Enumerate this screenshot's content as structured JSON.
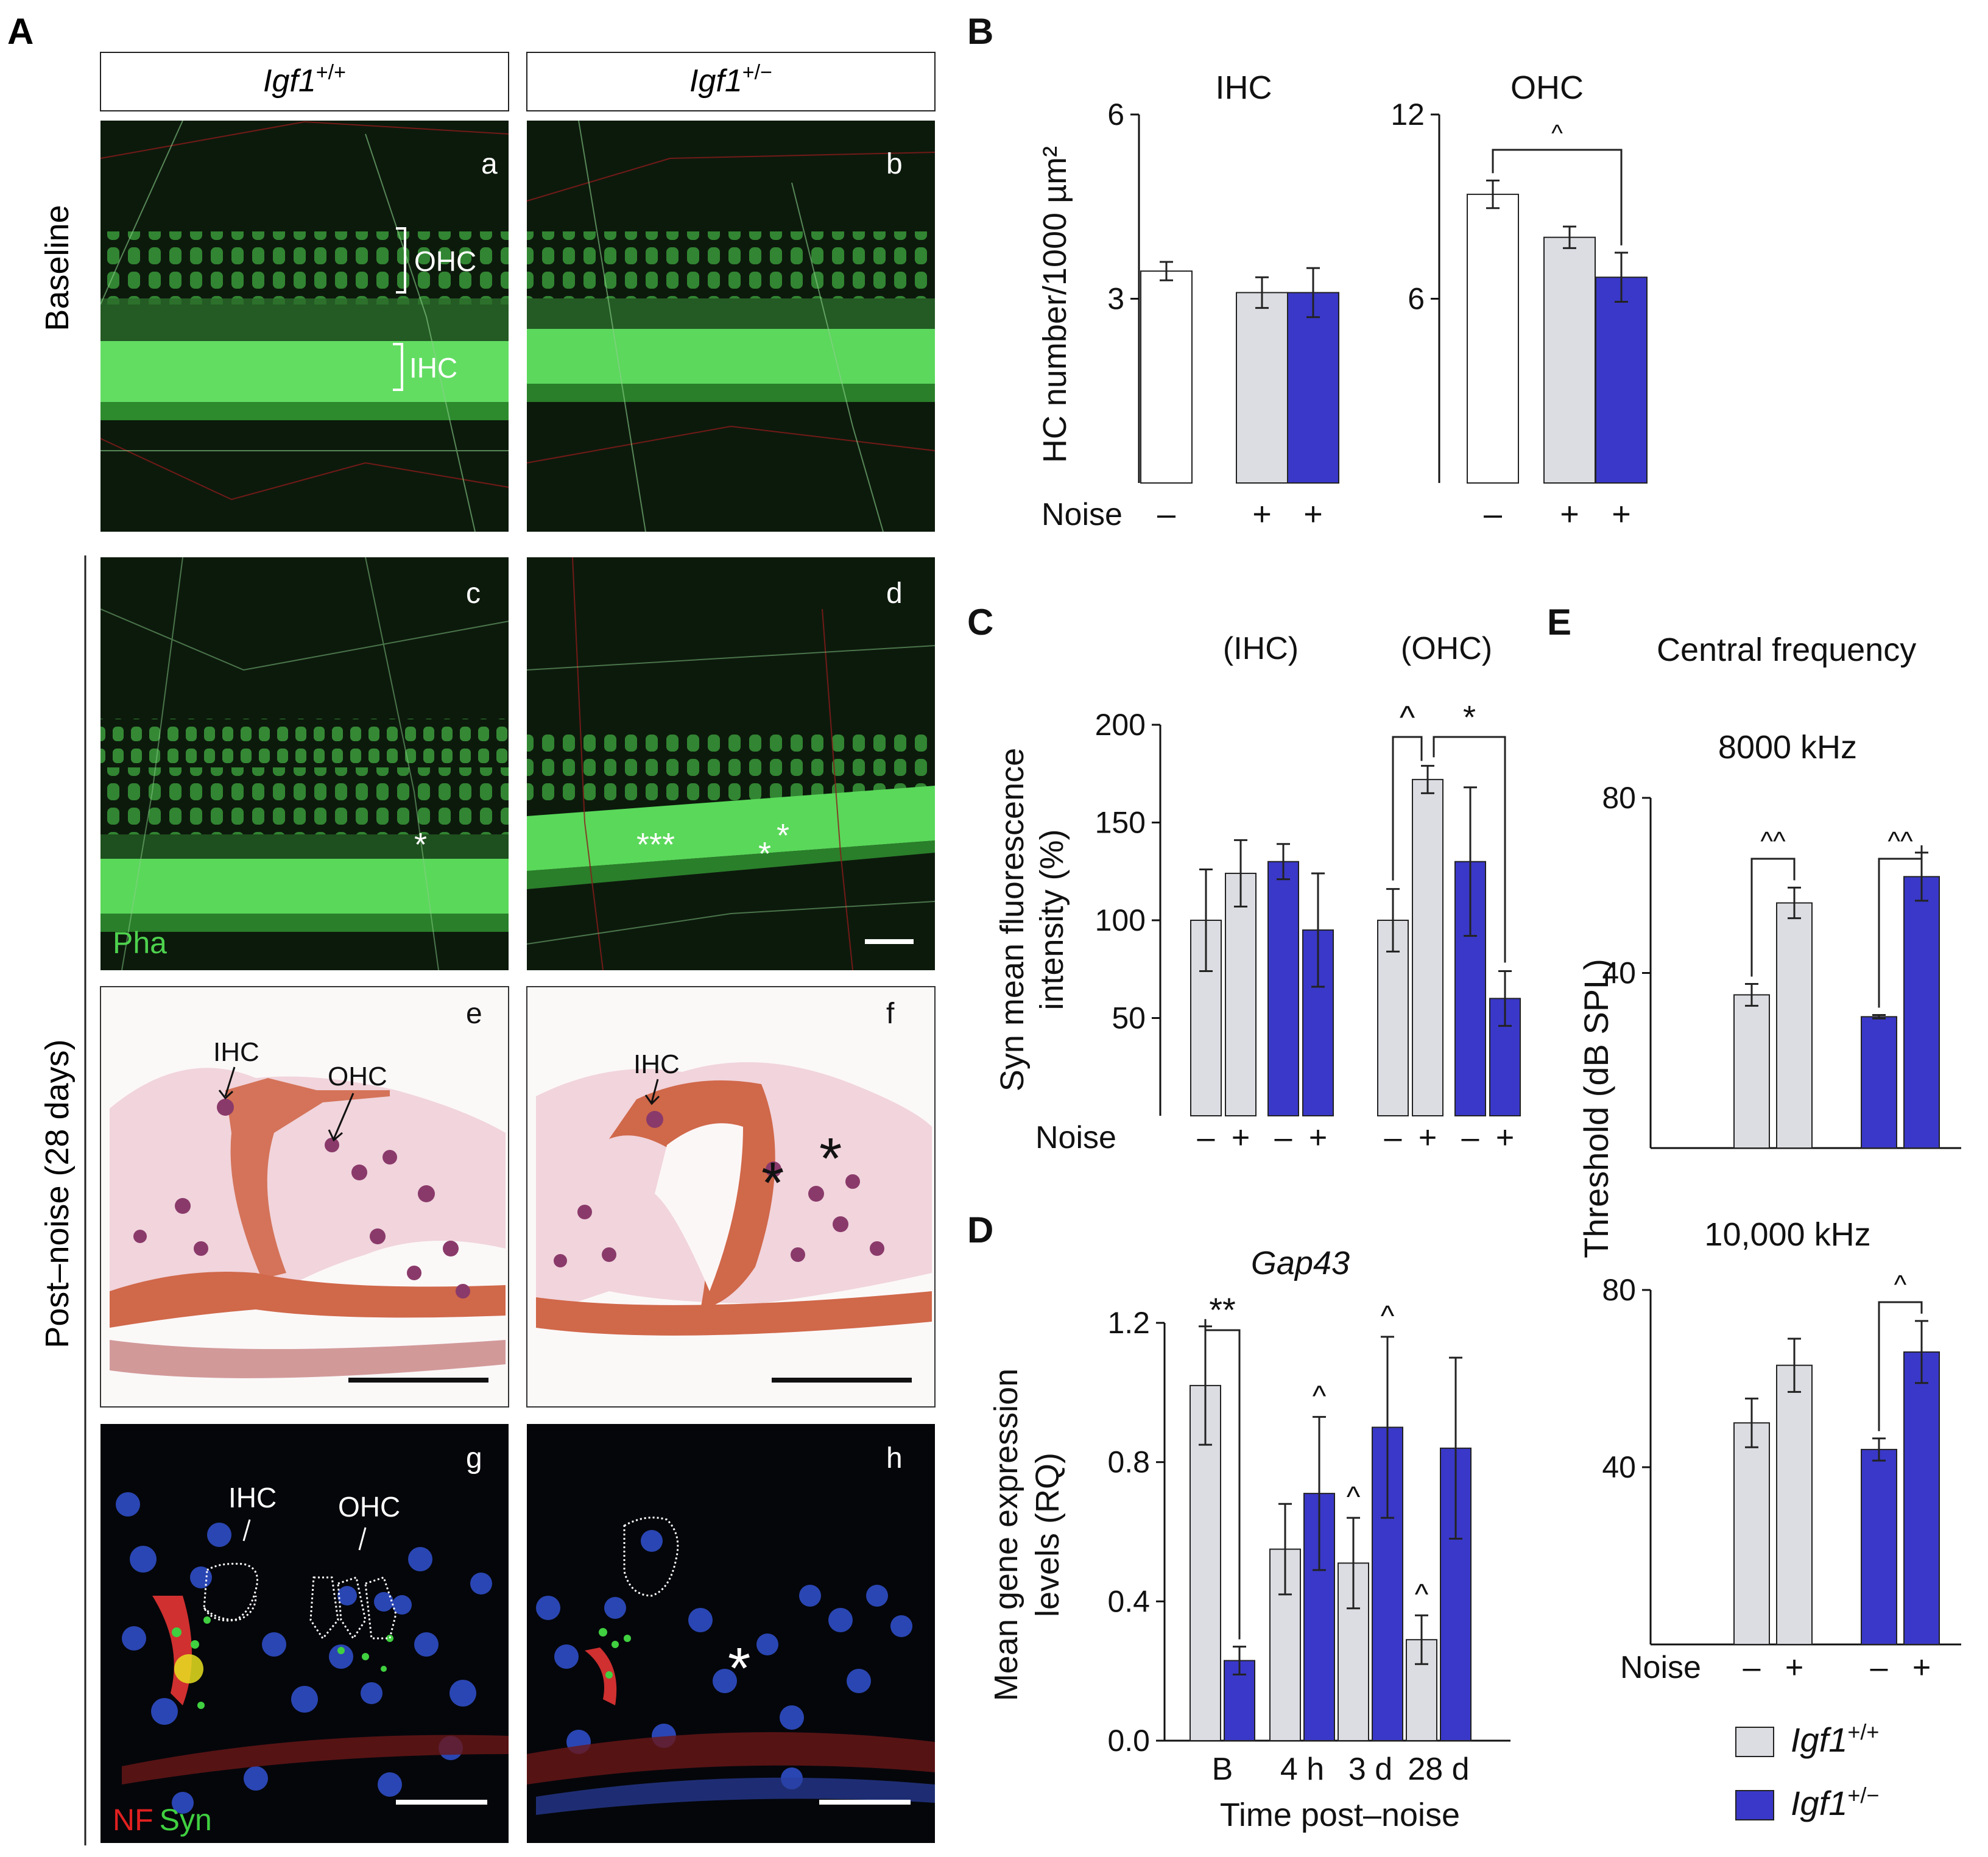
{
  "colors": {
    "wt": "#dcdde2",
    "het": "#3a38c8",
    "white_bar": "#ffffff",
    "pha_green": "#4ed24e",
    "nf_red": "#e02020",
    "syn_green": "#40d040",
    "nuclei_blue": "#3050c8",
    "he_pink": "#e8b0b0",
    "he_orange": "#d0684a",
    "he_purple": "#8a3a6a"
  },
  "panel_A": {
    "letter": "A",
    "col_labels": [
      {
        "gene": "Igf1",
        "sup": "+/+"
      },
      {
        "gene": "Igf1",
        "sup": "+/−"
      }
    ],
    "row_labels": {
      "baseline": "Baseline",
      "postnoise": "Post–noise (28 days)"
    },
    "sublabels": [
      "a",
      "b",
      "c",
      "d",
      "e",
      "f",
      "g",
      "h"
    ],
    "annotations": {
      "ohc": "OHC",
      "ihc": "IHC",
      "pha": "Pha",
      "nf": "NF",
      "syn": "Syn",
      "star": "*",
      "stars_d1": "***",
      "stars_d2": "*",
      "stars_d3": "*"
    }
  },
  "chart_data": [
    {
      "id": "B-IHC",
      "letter": "B",
      "type": "bar",
      "title": "IHC",
      "ylabel": "HC number/1000 µm²",
      "ylim": [
        0,
        6
      ],
      "yticks": [
        3,
        6
      ],
      "x_row_label": "Noise",
      "x_ticks": [
        "–",
        "+",
        "+"
      ],
      "genotypes": [
        "white",
        "wt",
        "het"
      ],
      "values": [
        3.45,
        3.1,
        3.1
      ],
      "errors": [
        0.15,
        0.25,
        0.4
      ],
      "significance": []
    },
    {
      "id": "B-OHC",
      "type": "bar",
      "title": "OHC",
      "ylim": [
        0,
        12
      ],
      "yticks": [
        6,
        12
      ],
      "x_ticks": [
        "–",
        "+",
        "+"
      ],
      "genotypes": [
        "white",
        "wt",
        "het"
      ],
      "values": [
        9.4,
        8.0,
        6.7
      ],
      "errors": [
        0.45,
        0.35,
        0.8
      ],
      "significance": [
        {
          "from": 0,
          "to": 2,
          "label": "^"
        }
      ]
    },
    {
      "id": "C",
      "letter": "C",
      "type": "bar",
      "ylabel": "Syn mean fluorescence intensity (%)",
      "ylim": [
        0,
        200
      ],
      "yticks": [
        50,
        100,
        150,
        200
      ],
      "group_labels": [
        "(IHC)",
        "(OHC)"
      ],
      "x_row_label": "Noise",
      "x_ticks": [
        "–",
        "+",
        "–",
        "+",
        "–",
        "+",
        "–",
        "+"
      ],
      "genotypes": [
        "wt",
        "wt",
        "het",
        "het",
        "wt",
        "wt",
        "het",
        "het"
      ],
      "values": [
        100,
        124,
        130,
        95,
        100,
        172,
        130,
        60
      ],
      "errors": [
        26,
        17,
        9,
        29,
        16,
        7,
        38,
        14
      ],
      "significance": [
        {
          "from": 4,
          "to": 5,
          "label": "^"
        },
        {
          "from": 5,
          "to": 7,
          "label": "*"
        }
      ]
    },
    {
      "id": "D",
      "letter": "D",
      "type": "bar",
      "title": "Gap43",
      "ylabel": "Mean gene expression levels (RQ)",
      "xlabel": "Time post–noise",
      "ylim": [
        0,
        1.2
      ],
      "yticks": [
        0.0,
        0.4,
        0.8,
        1.2
      ],
      "ytick_labels": [
        "0.0",
        "0.4",
        "0.8",
        "1.2"
      ],
      "categories": [
        "B",
        "4 h",
        "3 d",
        "28 d"
      ],
      "series": [
        {
          "genotype": "wt",
          "values": [
            1.02,
            0.55,
            0.51,
            0.29
          ],
          "errors": [
            0.17,
            0.13,
            0.13,
            0.07
          ]
        },
        {
          "genotype": "het",
          "values": [
            0.23,
            0.71,
            0.9,
            0.84
          ],
          "errors": [
            0.04,
            0.22,
            0.26,
            0.26
          ]
        }
      ],
      "significance": [
        {
          "type": "bracket",
          "from": [
            0,
            0
          ],
          "to": [
            0,
            1
          ],
          "label": "**"
        },
        {
          "type": "mark",
          "bar": [
            1,
            1
          ],
          "label": "^"
        },
        {
          "type": "mark",
          "bar": [
            2,
            0
          ],
          "label": "^"
        },
        {
          "type": "mark",
          "bar": [
            2,
            1
          ],
          "label": "^"
        },
        {
          "type": "mark",
          "bar": [
            3,
            0
          ],
          "label": "^"
        }
      ]
    },
    {
      "id": "E-8000",
      "letter": "E",
      "type": "bar",
      "header": "Central frequency",
      "title": "8000 kHz",
      "ylabel": "Threshold (dB SPL)",
      "ylim": [
        0,
        80
      ],
      "yticks": [
        40,
        80
      ],
      "genotypes": [
        "wt",
        "wt",
        "het",
        "het"
      ],
      "values": [
        35,
        56,
        30,
        62
      ],
      "errors": [
        2.5,
        3.5,
        0.4,
        5.5
      ],
      "significance": [
        {
          "from": 0,
          "to": 1,
          "label": "^^"
        },
        {
          "from": 2,
          "to": 3,
          "label": "^^"
        }
      ]
    },
    {
      "id": "E-10000",
      "type": "bar",
      "title": "10,000 kHz",
      "ylim": [
        0,
        80
      ],
      "yticks": [
        40,
        80
      ],
      "x_row_label": "Noise",
      "x_ticks": [
        "–",
        "+",
        "–",
        "+"
      ],
      "genotypes": [
        "wt",
        "wt",
        "het",
        "het"
      ],
      "values": [
        50,
        63,
        44,
        66
      ],
      "errors": [
        5.5,
        6,
        2.5,
        7
      ],
      "significance": [
        {
          "from": 2,
          "to": 3,
          "label": "^"
        }
      ]
    }
  ],
  "legend": [
    {
      "genotype": "wt",
      "gene": "Igf1",
      "sup": "+/+"
    },
    {
      "genotype": "het",
      "gene": "Igf1",
      "sup": "+/−"
    }
  ]
}
